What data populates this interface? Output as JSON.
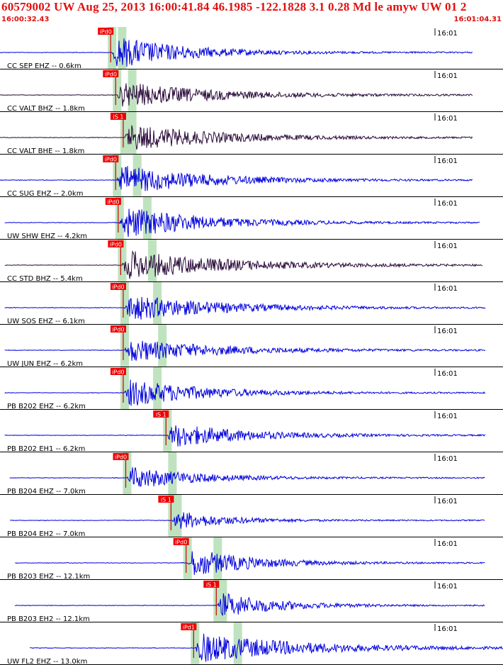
{
  "header": {
    "title": "60579002 UW Aug 25, 2013 16:00:41.84   46.1985 -122.1828  3.1 0.28 Md le amyw UW 01   2",
    "time_start": "16:00:32.43",
    "time_end": "16:01:04.31"
  },
  "colors": {
    "title": "#e01010",
    "pick_bg": "#ee0000",
    "pick_text": "#ffffff",
    "trace_blue": "#0000dd",
    "trace_dark": "#2a0a3a",
    "highlight": "#bfe3bf",
    "separator": "#000000",
    "synthetic": "#cc0000"
  },
  "chart_data": {
    "type": "line",
    "time_window": [
      "16:00:32.43",
      "16:01:04.31"
    ],
    "minute_label": "16:01",
    "traces": [
      {
        "label": "CC SEP EHZ -- 0.6km",
        "pick": "iPd0",
        "pick_t": 0.22,
        "color": "blue",
        "amp": 1.0,
        "decay": 0.14,
        "start": 0.0,
        "end": 0.94,
        "s_t": 0.24
      },
      {
        "label": "CC VALT BHZ -- 1.8km",
        "pick": "iPd0",
        "pick_t": 0.23,
        "color": "dark",
        "amp": 0.8,
        "decay": 0.18,
        "start": 0.0,
        "end": 0.94,
        "s_t": 0.26
      },
      {
        "label": "CC VALT BHE -- 1.8km",
        "pick": "iS 1",
        "pick_t": 0.245,
        "color": "dark",
        "amp": 0.8,
        "decay": 0.18,
        "start": 0.0,
        "end": 0.94,
        "s_t": 0.26
      },
      {
        "label": "CC SUG EHZ -- 2.0km",
        "pick": "iPd0",
        "pick_t": 0.23,
        "color": "blue",
        "amp": 0.9,
        "decay": 0.17,
        "start": 0.0,
        "end": 0.94,
        "s_t": 0.27
      },
      {
        "label": "UW SHW EHZ -- 4.2km",
        "pick": "iPd0",
        "pick_t": 0.235,
        "color": "blue",
        "amp": 1.0,
        "decay": 0.16,
        "start": 0.01,
        "end": 0.955,
        "s_t": 0.29
      },
      {
        "label": "CC STD BHZ -- 5.4km",
        "pick": "iPd0",
        "pick_t": 0.24,
        "color": "dark",
        "amp": 0.9,
        "decay": 0.2,
        "start": 0.01,
        "end": 0.96,
        "s_t": 0.3
      },
      {
        "label": "UW SOS EHZ -- 6.1km",
        "pick": "iPd0",
        "pick_t": 0.245,
        "color": "blue",
        "amp": 0.8,
        "decay": 0.18,
        "start": 0.01,
        "end": 0.965,
        "s_t": 0.31
      },
      {
        "label": "UW JUN EHZ -- 6.2km",
        "pick": "iPd0",
        "pick_t": 0.245,
        "color": "blue",
        "amp": 0.7,
        "decay": 0.18,
        "start": 0.01,
        "end": 0.965,
        "s_t": 0.32
      },
      {
        "label": "PB B202 EHZ -- 6.2km",
        "pick": "iPd0",
        "pick_t": 0.245,
        "color": "blue",
        "amp": 0.85,
        "decay": 0.15,
        "start": 0.01,
        "end": 0.965,
        "s_t": 0.31
      },
      {
        "label": "PB B202 EH1 -- 6.2km",
        "pick": "iS 1",
        "pick_t": 0.33,
        "color": "blue",
        "amp": 0.75,
        "decay": 0.15,
        "start": 0.01,
        "end": 0.965,
        "s_t": 0.33
      },
      {
        "label": "PB B204 EHZ -- 7.0km",
        "pick": "iPd0",
        "pick_t": 0.25,
        "color": "blue",
        "amp": 0.7,
        "decay": 0.13,
        "start": 0.02,
        "end": 0.965,
        "s_t": 0.34
      },
      {
        "label": "PB B204 EH2 -- 7.0km",
        "pick": "iS 1",
        "pick_t": 0.34,
        "color": "blue",
        "amp": 0.6,
        "decay": 0.1,
        "start": 0.02,
        "end": 0.965,
        "s_t": 0.35
      },
      {
        "label": "PB B203 EHZ -- 12.1km",
        "pick": "iPd0",
        "pick_t": 0.37,
        "color": "blue",
        "amp": 0.9,
        "decay": 0.12,
        "start": 0.03,
        "end": 0.965,
        "s_t": 0.43
      },
      {
        "label": "PB B203 EH2 -- 12.1km",
        "pick": "iS 1",
        "pick_t": 0.43,
        "color": "blue",
        "amp": 0.8,
        "decay": 0.11,
        "start": 0.03,
        "end": 0.965,
        "s_t": 0.44
      },
      {
        "label": "UW FL2 EHZ -- 13.0km",
        "pick": "iPd1",
        "pick_t": 0.385,
        "color": "blue",
        "amp": 0.9,
        "decay": 0.2,
        "start": 0.06,
        "end": 1.0,
        "s_t": 0.47
      }
    ]
  }
}
